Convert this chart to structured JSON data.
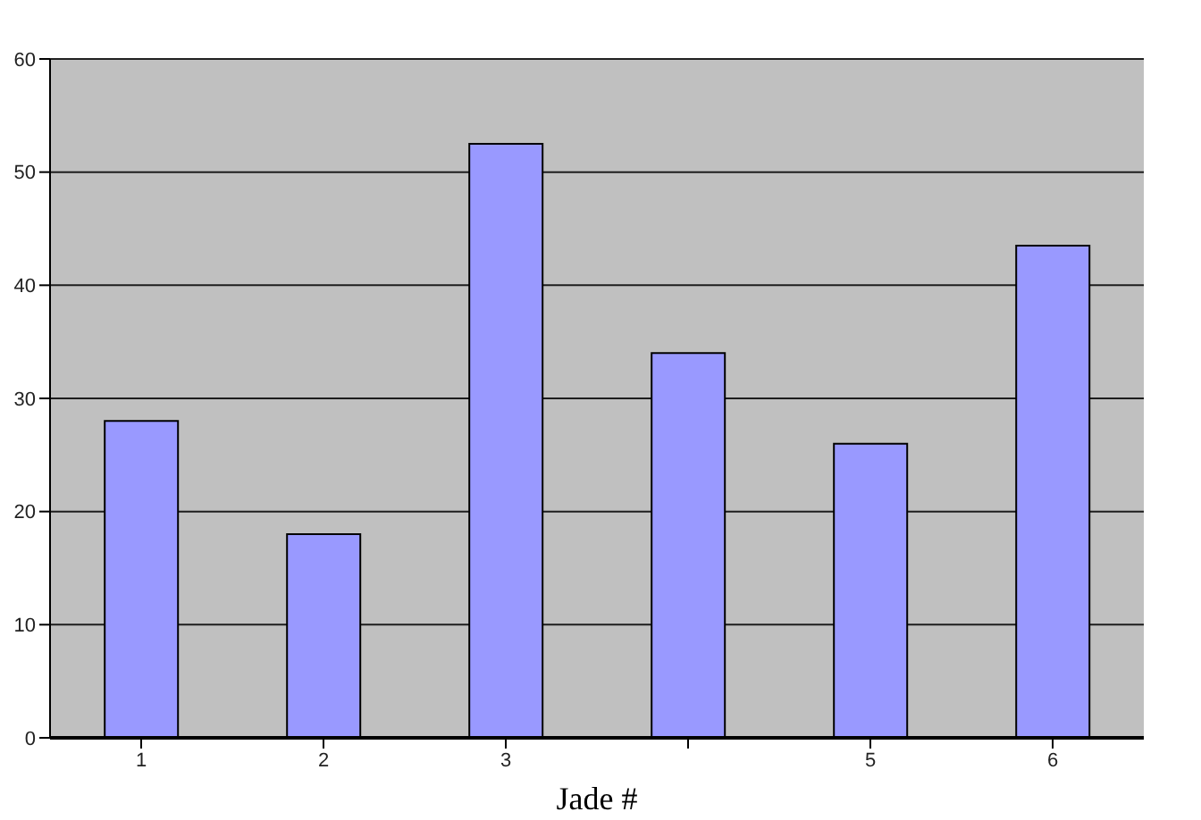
{
  "chart_data": {
    "type": "bar",
    "xlabel": "Jade #",
    "categories": [
      "1",
      "2",
      "3",
      null,
      "5",
      "6"
    ],
    "values": [
      28,
      18,
      52.5,
      34,
      26,
      43.5
    ],
    "color": "#9999ff",
    "ylim": [
      0,
      60
    ],
    "yticks": [
      0,
      10,
      20,
      30,
      40,
      50,
      60
    ],
    "grid": "y"
  }
}
